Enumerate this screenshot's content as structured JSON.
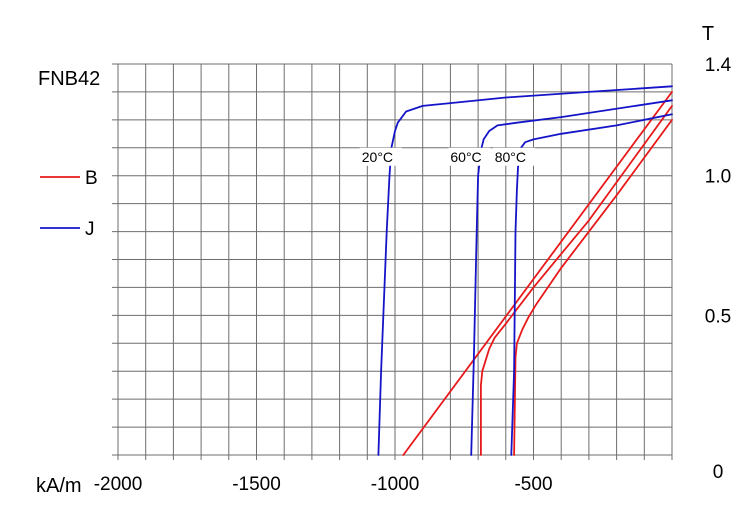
{
  "chart_data": {
    "type": "line",
    "title": "FNB42",
    "xlabel": "kA/m",
    "ylabel": "T",
    "xlim": [
      -2000,
      0
    ],
    "ylim": [
      0,
      1.4
    ],
    "grid": true,
    "x_ticks": [
      {
        "value": -2000,
        "label": "-2000"
      },
      {
        "value": -1500,
        "label": "-1500"
      },
      {
        "value": -1000,
        "label": "-1000"
      },
      {
        "value": -500,
        "label": "-500"
      }
    ],
    "y_ticks": [
      {
        "value": 1.4,
        "label": "1.4"
      },
      {
        "value": 1.0,
        "label": "1.0"
      },
      {
        "value": 0.5,
        "label": "0.5"
      },
      {
        "value": 0,
        "label": "0"
      }
    ],
    "legend": {
      "placement": "left",
      "entries": [
        {
          "label": "B",
          "color": "#e8191a"
        },
        {
          "label": "J",
          "color": "#1414c8"
        }
      ]
    },
    "annotations": [
      {
        "text": "20°C",
        "x": -1120,
        "y": 1.05
      },
      {
        "text": "60°C",
        "x": -800,
        "y": 1.05
      },
      {
        "text": "80°C",
        "x": -640,
        "y": 1.05
      }
    ],
    "series": [
      {
        "group": "B",
        "temperature": "20°C",
        "color": "#e8191a",
        "x": [
          -970,
          0
        ],
        "y": [
          0,
          1.3
        ]
      },
      {
        "group": "B",
        "temperature": "60°C",
        "color": "#e8191a",
        "x": [
          -690,
          -690,
          -685,
          -660,
          -640,
          -600,
          -500,
          -300,
          0
        ],
        "y": [
          0,
          0.25,
          0.3,
          0.38,
          0.42,
          0.47,
          0.6,
          0.84,
          1.25
        ]
      },
      {
        "group": "B",
        "temperature": "80°C",
        "color": "#e8191a",
        "x": [
          -570,
          -565,
          -560,
          -540,
          -520,
          -490,
          -400,
          -200,
          0
        ],
        "y": [
          0,
          0.35,
          0.4,
          0.45,
          0.49,
          0.54,
          0.67,
          0.93,
          1.2
        ]
      },
      {
        "group": "J",
        "temperature": "20°C",
        "color": "#1414c8",
        "x": [
          -1060,
          -1050,
          -1030,
          -1020,
          -1013,
          -1000,
          -990,
          -960,
          -900,
          -800,
          -600,
          -300,
          0
        ],
        "y": [
          0,
          0.3,
          0.8,
          1.0,
          1.1,
          1.16,
          1.19,
          1.23,
          1.25,
          1.26,
          1.28,
          1.3,
          1.32
        ]
      },
      {
        "group": "J",
        "temperature": "60°C",
        "color": "#1414c8",
        "x": [
          -725,
          -715,
          -705,
          -700,
          -690,
          -680,
          -660,
          -630,
          -560,
          -400,
          0
        ],
        "y": [
          0,
          0.35,
          0.8,
          1.0,
          1.09,
          1.13,
          1.16,
          1.18,
          1.19,
          1.21,
          1.27
        ]
      },
      {
        "group": "J",
        "temperature": "80°C",
        "color": "#1414c8",
        "x": [
          -580,
          -570,
          -565,
          -560,
          -555,
          -545,
          -530,
          -500,
          -400,
          -200,
          0
        ],
        "y": [
          0,
          0.3,
          0.8,
          0.95,
          1.05,
          1.1,
          1.12,
          1.13,
          1.15,
          1.18,
          1.22
        ]
      }
    ]
  }
}
